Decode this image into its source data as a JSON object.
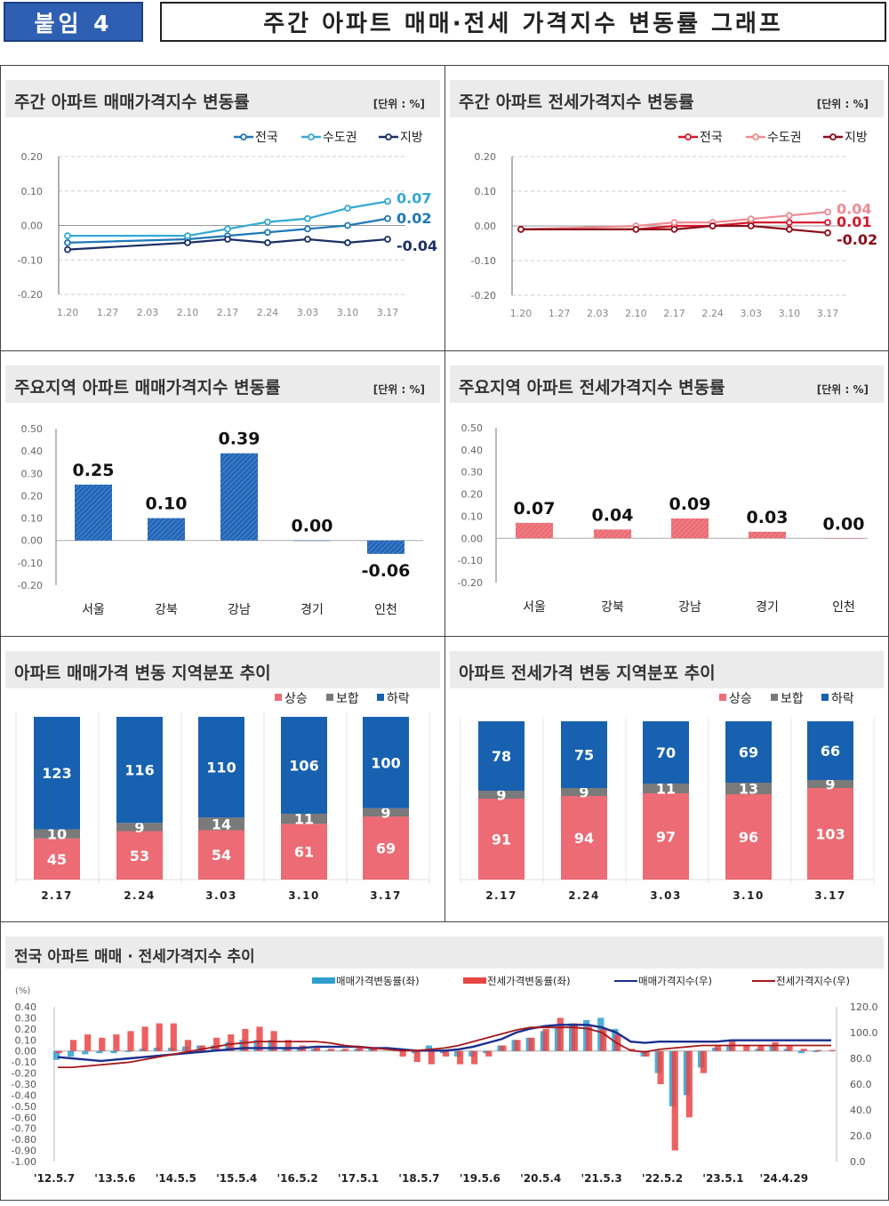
{
  "header": {
    "badge": "붙임 4",
    "title": "주간 아파트 매매·전세 가격지수 변동률 그래프"
  },
  "colors": {
    "sale_nation": "#1f77b8",
    "sale_capital": "#33a9d3",
    "sale_local": "#1a2f66",
    "jeonse_nation": "#d7192d",
    "jeonse_capital": "#f08a92",
    "jeonse_local": "#8b0e1a",
    "rise": "#ec6b74",
    "flat": "#7a7a7a",
    "fall": "#1761b0",
    "sale_bar": "#2266b8",
    "jeonse_bar": "#ec6b72"
  },
  "chart_data": [
    {
      "id": "weekly-sale",
      "type": "line",
      "title": "주간 아파트 매매가격지수 변동률",
      "unit": "[단위 : %]",
      "categories": [
        "1.20",
        "1.27",
        "2.03",
        "2.10",
        "2.17",
        "2.24",
        "3.03",
        "3.10",
        "3.17"
      ],
      "ylim": [
        -0.2,
        0.2
      ],
      "yticks": [
        "0.20",
        "0.10",
        "0.00",
        "-0.10",
        "-0.20"
      ],
      "grid": true,
      "legend": "top-right",
      "series": [
        {
          "name": "전국",
          "values": [
            -0.05,
            null,
            null,
            -0.04,
            -0.03,
            -0.02,
            -0.01,
            0.0,
            0.02
          ],
          "end_label": "0.02"
        },
        {
          "name": "수도권",
          "values": [
            -0.03,
            null,
            null,
            -0.03,
            -0.01,
            0.01,
            0.02,
            0.05,
            0.07
          ],
          "end_label": "0.07"
        },
        {
          "name": "지방",
          "values": [
            -0.07,
            null,
            null,
            -0.05,
            -0.04,
            -0.05,
            -0.04,
            -0.05,
            -0.04
          ],
          "end_label": "-0.04"
        }
      ]
    },
    {
      "id": "weekly-jeonse",
      "type": "line",
      "title": "주간 아파트 전세가격지수 변동률",
      "unit": "[단위 : %]",
      "categories": [
        "1.20",
        "1.27",
        "2.03",
        "2.10",
        "2.17",
        "2.24",
        "3.03",
        "3.10",
        "3.17"
      ],
      "ylim": [
        -0.2,
        0.2
      ],
      "yticks": [
        "0.20",
        "0.10",
        "0.00",
        "-0.10",
        "-0.20"
      ],
      "grid": true,
      "legend": "top-right",
      "series": [
        {
          "name": "전국",
          "values": [
            -0.01,
            null,
            null,
            -0.01,
            0.0,
            0.0,
            0.01,
            0.01,
            0.01
          ],
          "end_label": "0.01"
        },
        {
          "name": "수도권",
          "values": [
            -0.01,
            null,
            null,
            0.0,
            0.01,
            0.01,
            0.02,
            0.03,
            0.04
          ],
          "end_label": "0.04"
        },
        {
          "name": "지방",
          "values": [
            -0.01,
            null,
            null,
            -0.01,
            -0.01,
            0.0,
            0.0,
            -0.01,
            -0.02
          ],
          "end_label": "-0.02"
        }
      ]
    },
    {
      "id": "region-sale",
      "type": "bar",
      "title": "주요지역 아파트 매매가격지수 변동률",
      "unit": "[단위 : %]",
      "categories": [
        "서울",
        "강북",
        "강남",
        "경기",
        "인천"
      ],
      "values": [
        0.25,
        0.1,
        0.39,
        0.0,
        -0.06
      ],
      "labels": [
        "0.25",
        "0.10",
        "0.39",
        "0.00",
        "-0.06"
      ],
      "ylim": [
        -0.2,
        0.5
      ],
      "yticks": [
        "0.50",
        "0.40",
        "0.30",
        "0.20",
        "0.10",
        "0.00",
        "-0.10",
        "-0.20"
      ]
    },
    {
      "id": "region-jeonse",
      "type": "bar",
      "title": "주요지역 아파트 전세가격지수 변동률",
      "unit": "[단위 : %]",
      "categories": [
        "서울",
        "강북",
        "강남",
        "경기",
        "인천"
      ],
      "values": [
        0.07,
        0.04,
        0.09,
        0.03,
        0.0
      ],
      "labels": [
        "0.07",
        "0.04",
        "0.09",
        "0.03",
        "0.00"
      ],
      "ylim": [
        -0.2,
        0.5
      ],
      "yticks": [
        "0.50",
        "0.40",
        "0.30",
        "0.20",
        "0.10",
        "0.00",
        "-0.10",
        "-0.20"
      ]
    },
    {
      "id": "dist-sale",
      "type": "bar",
      "stacked": true,
      "title": "아파트 매매가격 변동 지역분포 추이",
      "categories": [
        "2.17",
        "2.24",
        "3.03",
        "3.10",
        "3.17"
      ],
      "legend": "top-right",
      "series": [
        {
          "name": "상승",
          "values": [
            45,
            53,
            54,
            61,
            69
          ]
        },
        {
          "name": "보합",
          "values": [
            10,
            9,
            14,
            11,
            9
          ]
        },
        {
          "name": "하락",
          "values": [
            123,
            116,
            110,
            106,
            100
          ]
        }
      ]
    },
    {
      "id": "dist-jeonse",
      "type": "bar",
      "stacked": true,
      "title": "아파트 전세가격 변동 지역분포 추이",
      "categories": [
        "2.17",
        "2.24",
        "3.03",
        "3.10",
        "3.17"
      ],
      "legend": "top-right",
      "series": [
        {
          "name": "상승",
          "values": [
            91,
            94,
            97,
            96,
            103
          ]
        },
        {
          "name": "보합",
          "values": [
            9,
            9,
            11,
            13,
            9
          ]
        },
        {
          "name": "하락",
          "values": [
            78,
            75,
            70,
            69,
            66
          ]
        }
      ]
    },
    {
      "id": "nation-trend",
      "type": "bar+line",
      "title": "전국 아파트 매매 · 전세가격지수 추이",
      "ylabel": "(%)",
      "ylim": [
        -1.0,
        0.4
      ],
      "y2lim": [
        0,
        120
      ],
      "yticks": [
        "0.40",
        "0.30",
        "0.20",
        "0.10",
        "0.00",
        "-0.10",
        "-0.20",
        "-0.30",
        "-0.40",
        "-0.50",
        "-0.60",
        "-0.70",
        "-0.80",
        "-0.90",
        "-1.00"
      ],
      "y2ticks": [
        "120.0",
        "100.0",
        "80.0",
        "60.0",
        "40.0",
        "20.0",
        "0.0"
      ],
      "xticks": [
        "'12.5.7",
        "'13.5.6",
        "'14.5.5",
        "'15.5.4",
        "'16.5.2",
        "'17.5.1",
        "'18.5.7",
        "'19.5.6",
        "'20.5.4",
        "'21.5.3",
        "'22.5.2",
        "'23.5.1",
        "'24.4.29"
      ],
      "series": [
        {
          "name": "매매가격변동률(좌)",
          "kind": "bar",
          "values": [
            -0.08,
            -0.05,
            -0.03,
            -0.02,
            -0.02,
            -0.01,
            0.02,
            0.03,
            0.03,
            0.04,
            0.05,
            0.05,
            0.08,
            0.1,
            0.1,
            0.1,
            0.03,
            0.02,
            0.02,
            0.01,
            0.01,
            0.02,
            0.03,
            0.0,
            0.0,
            -0.02,
            0.05,
            -0.02,
            -0.05,
            -0.05,
            -0.02,
            0.05,
            0.1,
            0.12,
            0.18,
            0.22,
            0.25,
            0.28,
            0.3,
            0.2,
            0.0,
            -0.05,
            -0.2,
            -0.5,
            -0.4,
            -0.15,
            0.03,
            0.05,
            0.0,
            0.02,
            0.05,
            0.02,
            -0.02,
            -0.01,
            0.0
          ]
        },
        {
          "name": "전세가격변동률(좌)",
          "kind": "bar",
          "values": [
            -0.02,
            0.1,
            0.15,
            0.12,
            0.15,
            0.18,
            0.22,
            0.25,
            0.25,
            0.1,
            0.05,
            0.12,
            0.15,
            0.2,
            0.22,
            0.18,
            0.1,
            0.05,
            0.03,
            0.02,
            0.02,
            0.03,
            0.02,
            0.0,
            -0.05,
            -0.1,
            -0.12,
            -0.05,
            -0.12,
            -0.12,
            -0.05,
            0.05,
            0.1,
            0.12,
            0.2,
            0.3,
            0.25,
            0.22,
            0.2,
            0.15,
            0.02,
            -0.05,
            -0.3,
            -0.9,
            -0.6,
            -0.2,
            0.05,
            0.1,
            0.05,
            0.05,
            0.08,
            0.05,
            0.02,
            0.01,
            0.01
          ]
        },
        {
          "name": "매매가격지수(우)",
          "kind": "line",
          "values": [
            81,
            80,
            79,
            78,
            79,
            80,
            81,
            82,
            83,
            84,
            85,
            86,
            87,
            88,
            88,
            88,
            88,
            88,
            89,
            89,
            89,
            89,
            88,
            88,
            87,
            86,
            86,
            86,
            87,
            89,
            92,
            95,
            100,
            103,
            105,
            106,
            106,
            106,
            104,
            100,
            93,
            92,
            93,
            93,
            93,
            93,
            93,
            94,
            94,
            94,
            94,
            94,
            94,
            94,
            94
          ]
        },
        {
          "name": "전세가격지수(우)",
          "kind": "line",
          "values": [
            73,
            73,
            74,
            75,
            76,
            77,
            79,
            81,
            83,
            85,
            87,
            89,
            91,
            92,
            93,
            93,
            93,
            93,
            93,
            92,
            90,
            89,
            88,
            87,
            86,
            86,
            87,
            88,
            90,
            93,
            96,
            99,
            102,
            104,
            104,
            104,
            104,
            103,
            100,
            92,
            86,
            85,
            87,
            88,
            89,
            90,
            90,
            90,
            90,
            90,
            90,
            90,
            90,
            90,
            90
          ]
        }
      ]
    }
  ]
}
